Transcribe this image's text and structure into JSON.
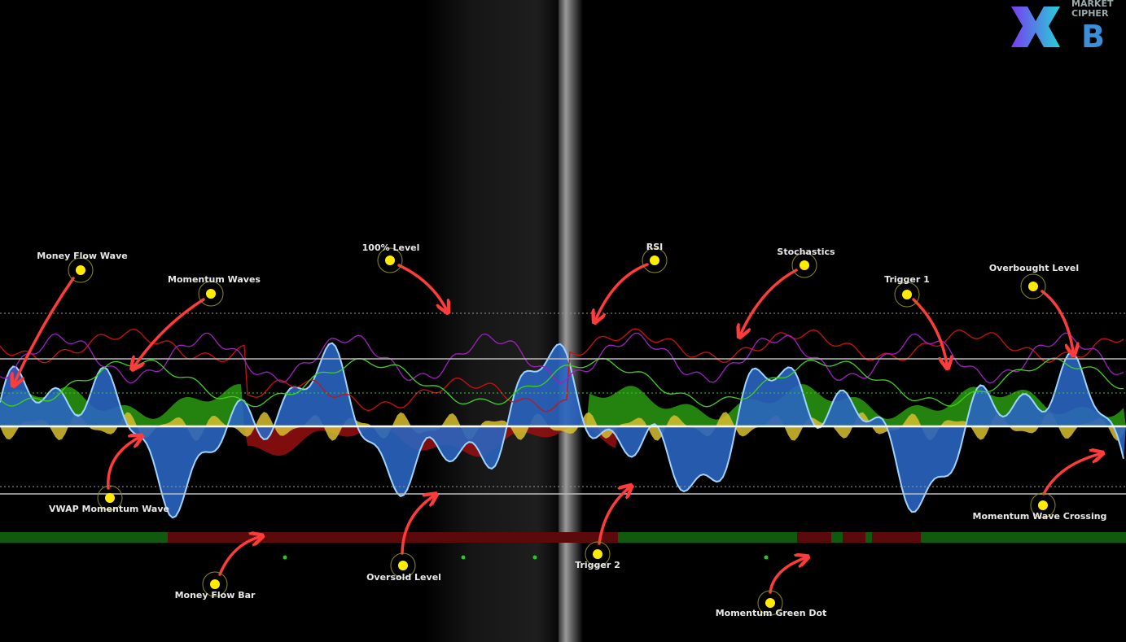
{
  "logo": {
    "line1": "MARKET",
    "line2": "CIPHER",
    "letter": "B"
  },
  "annotations": [
    {
      "label": "Money Flow Wave"
    },
    {
      "label": "Momentum Waves"
    },
    {
      "label": "100% Level"
    },
    {
      "label": "RSI"
    },
    {
      "label": "Stochastics"
    },
    {
      "label": "Trigger 1"
    },
    {
      "label": "Overbought Level"
    },
    {
      "label": "VWAP Momentum Wave"
    },
    {
      "label": "Money Flow Bar"
    },
    {
      "label": "Oversold Level"
    },
    {
      "label": "Trigger 2"
    },
    {
      "label": "Momentum Wave Crossing"
    },
    {
      "label": "Momentum Green Dot"
    }
  ]
}
